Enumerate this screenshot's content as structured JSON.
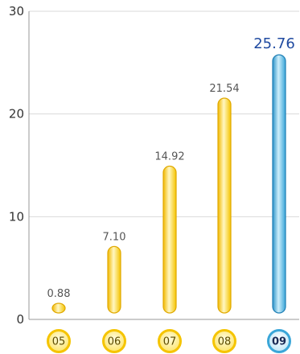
{
  "chart_data": {
    "type": "bar",
    "categories": [
      "05",
      "06",
      "07",
      "08",
      "09"
    ],
    "values": [
      0.88,
      7.1,
      14.92,
      21.54,
      25.76
    ],
    "value_labels": [
      "0.88",
      "7.10",
      "14.92",
      "21.54",
      "25.76"
    ],
    "highlight_index": 4,
    "title": "",
    "xlabel": "",
    "ylabel": "",
    "ylim": [
      0,
      30
    ],
    "yticks": [
      0,
      10,
      20,
      30
    ],
    "ytick_labels": [
      "0",
      "10",
      "20",
      "30"
    ],
    "grid": true,
    "legend": "none",
    "colors": {
      "bar": "#f5c400",
      "bar_light": "#fff6b8",
      "bar_edge": "#e0a800",
      "highlight": "#3aa6d8",
      "highlight_light": "#bfe6f7",
      "highlight_edge": "#1f7fb5",
      "grid": "#d9d9d9",
      "axis": "#999999"
    }
  }
}
